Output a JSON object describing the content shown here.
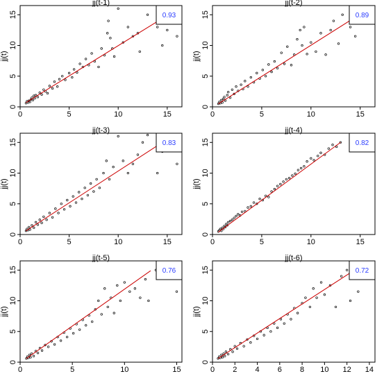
{
  "chart_data": [
    {
      "type": "scatter",
      "title": "jj(t-1)",
      "ylabel": "jj(t)",
      "correlation": "0.93",
      "xlim": [
        0,
        16.5
      ],
      "ylim": [
        0,
        16.5
      ],
      "xticks": [
        0,
        5,
        10,
        15
      ],
      "yticks": [
        0,
        5,
        10,
        15
      ],
      "fit_line": {
        "x": [
          0.6,
          15.0
        ],
        "y": [
          0.7,
          14.9
        ],
        "color": "#cc0000"
      },
      "label_color": "#2a3cff",
      "points": [
        [
          0.6,
          0.6
        ],
        [
          0.7,
          0.9
        ],
        [
          0.8,
          0.7
        ],
        [
          0.9,
          1.0
        ],
        [
          1.0,
          0.8
        ],
        [
          1.1,
          1.2
        ],
        [
          1.2,
          1.5
        ],
        [
          1.3,
          1.1
        ],
        [
          1.4,
          1.8
        ],
        [
          1.5,
          1.4
        ],
        [
          1.6,
          1.9
        ],
        [
          1.8,
          1.6
        ],
        [
          2.0,
          2.3
        ],
        [
          2.2,
          2.0
        ],
        [
          2.4,
          2.8
        ],
        [
          2.6,
          2.5
        ],
        [
          2.8,
          2.2
        ],
        [
          3.0,
          3.4
        ],
        [
          3.3,
          3.0
        ],
        [
          3.5,
          4.1
        ],
        [
          3.8,
          3.3
        ],
        [
          4.0,
          4.5
        ],
        [
          4.3,
          5.0
        ],
        [
          4.6,
          4.4
        ],
        [
          5.0,
          5.5
        ],
        [
          5.3,
          4.8
        ],
        [
          5.5,
          6.1
        ],
        [
          5.8,
          5.6
        ],
        [
          6.1,
          7.0
        ],
        [
          6.4,
          6.5
        ],
        [
          6.7,
          7.8
        ],
        [
          7.0,
          6.8
        ],
        [
          7.3,
          8.7
        ],
        [
          7.6,
          7.4
        ],
        [
          8.0,
          6.5
        ],
        [
          8.3,
          9.5
        ],
        [
          8.6,
          8.4
        ],
        [
          8.9,
          12.0
        ],
        [
          9.0,
          14.0
        ],
        [
          9.2,
          11.2
        ],
        [
          9.4,
          9.5
        ],
        [
          9.6,
          8.2
        ],
        [
          10.0,
          16.0
        ],
        [
          10.5,
          10.5
        ],
        [
          11.0,
          13.0
        ],
        [
          11.5,
          11.5
        ],
        [
          12.0,
          12.0
        ],
        [
          12.2,
          9.0
        ],
        [
          13.0,
          15.0
        ],
        [
          14.0,
          13.0
        ],
        [
          14.5,
          10.0
        ],
        [
          15.0,
          12.5
        ],
        [
          16.0,
          11.5
        ]
      ]
    },
    {
      "type": "scatter",
      "title": "jj(t-2)",
      "ylabel": "jj(t)",
      "correlation": "0.89",
      "xlim": [
        0,
        16.5
      ],
      "ylim": [
        0,
        16.5
      ],
      "xticks": [
        0,
        5,
        10,
        15
      ],
      "yticks": [
        0,
        5,
        10,
        15
      ],
      "fit_line": {
        "x": [
          0.6,
          14.5
        ],
        "y": [
          0.5,
          14.6
        ],
        "color": "#cc0000"
      },
      "label_color": "#2a3cff",
      "points": [
        [
          0.6,
          0.5
        ],
        [
          0.7,
          0.8
        ],
        [
          0.8,
          0.6
        ],
        [
          0.9,
          1.1
        ],
        [
          1.0,
          0.7
        ],
        [
          1.1,
          1.3
        ],
        [
          1.2,
          1.6
        ],
        [
          1.3,
          1.0
        ],
        [
          1.5,
          1.9
        ],
        [
          1.6,
          2.4
        ],
        [
          1.8,
          1.5
        ],
        [
          2.0,
          2.8
        ],
        [
          2.2,
          2.1
        ],
        [
          2.4,
          3.3
        ],
        [
          2.6,
          2.6
        ],
        [
          2.9,
          3.6
        ],
        [
          3.1,
          2.9
        ],
        [
          3.3,
          4.2
        ],
        [
          3.6,
          3.3
        ],
        [
          3.9,
          4.8
        ],
        [
          4.2,
          4.0
        ],
        [
          4.5,
          5.5
        ],
        [
          4.8,
          4.6
        ],
        [
          5.1,
          6.0
        ],
        [
          5.4,
          5.0
        ],
        [
          5.7,
          6.9
        ],
        [
          6.0,
          5.7
        ],
        [
          6.3,
          7.4
        ],
        [
          6.6,
          6.3
        ],
        [
          7.0,
          8.8
        ],
        [
          7.3,
          7.0
        ],
        [
          7.6,
          9.8
        ],
        [
          8.0,
          6.8
        ],
        [
          8.3,
          8.5
        ],
        [
          8.6,
          11.0
        ],
        [
          8.9,
          12.5
        ],
        [
          9.1,
          10.0
        ],
        [
          9.3,
          13.0
        ],
        [
          9.6,
          8.6
        ],
        [
          10.0,
          10.5
        ],
        [
          10.5,
          9.0
        ],
        [
          11.0,
          12.0
        ],
        [
          11.5,
          8.5
        ],
        [
          12.0,
          12.5
        ],
        [
          12.3,
          14.0
        ],
        [
          12.8,
          10.3
        ],
        [
          13.2,
          15.0
        ],
        [
          14.0,
          13.0
        ],
        [
          14.5,
          11.5
        ]
      ]
    },
    {
      "type": "scatter",
      "title": "jj(t-3)",
      "ylabel": "jj(t)",
      "correlation": "0.83",
      "xlim": [
        0,
        16.5
      ],
      "ylim": [
        0,
        16.5
      ],
      "xticks": [
        0,
        5,
        10,
        15
      ],
      "yticks": [
        0,
        5,
        10,
        15
      ],
      "fit_line": {
        "x": [
          0.6,
          14.5
        ],
        "y": [
          0.6,
          15.0
        ],
        "color": "#cc0000"
      },
      "label_color": "#2a3cff",
      "points": [
        [
          0.6,
          0.6
        ],
        [
          0.7,
          0.9
        ],
        [
          0.8,
          0.7
        ],
        [
          0.9,
          1.2
        ],
        [
          1.0,
          0.8
        ],
        [
          1.2,
          1.5
        ],
        [
          1.4,
          1.1
        ],
        [
          1.6,
          2.0
        ],
        [
          1.8,
          1.6
        ],
        [
          2.0,
          2.4
        ],
        [
          2.2,
          1.9
        ],
        [
          2.4,
          2.9
        ],
        [
          2.7,
          2.4
        ],
        [
          3.0,
          3.5
        ],
        [
          3.3,
          2.8
        ],
        [
          3.6,
          4.2
        ],
        [
          3.9,
          3.5
        ],
        [
          4.2,
          5.0
        ],
        [
          4.5,
          4.1
        ],
        [
          4.8,
          5.6
        ],
        [
          5.1,
          4.6
        ],
        [
          5.4,
          6.2
        ],
        [
          5.7,
          5.2
        ],
        [
          6.0,
          6.9
        ],
        [
          6.3,
          5.8
        ],
        [
          6.6,
          7.6
        ],
        [
          6.9,
          6.4
        ],
        [
          7.2,
          8.3
        ],
        [
          7.5,
          7.0
        ],
        [
          7.8,
          9.0
        ],
        [
          8.1,
          7.6
        ],
        [
          8.5,
          10.0
        ],
        [
          8.8,
          12.0
        ],
        [
          9.1,
          9.0
        ],
        [
          9.5,
          11.0
        ],
        [
          10.0,
          16.0
        ],
        [
          10.5,
          12.0
        ],
        [
          11.0,
          10.0
        ],
        [
          11.5,
          11.5
        ],
        [
          12.0,
          13.0
        ],
        [
          12.5,
          15.0
        ],
        [
          13.0,
          16.2
        ],
        [
          14.0,
          10.0
        ],
        [
          14.5,
          13.5
        ],
        [
          16.0,
          11.5
        ]
      ]
    },
    {
      "type": "scatter",
      "title": "jj(t-4)",
      "ylabel": "jj(t)",
      "correlation": "0.82",
      "xlim": [
        0,
        16.5
      ],
      "ylim": [
        0,
        16.5
      ],
      "xticks": [
        0,
        5,
        10,
        15
      ],
      "yticks": [
        0,
        5,
        10,
        15
      ],
      "fit_line": {
        "x": [
          0.6,
          13.0
        ],
        "y": [
          0.4,
          15.0
        ],
        "color": "#cc0000"
      },
      "label_color": "#2a3cff",
      "points": [
        [
          0.6,
          0.5
        ],
        [
          0.7,
          0.7
        ],
        [
          0.8,
          0.9
        ],
        [
          0.9,
          0.6
        ],
        [
          1.0,
          1.1
        ],
        [
          1.1,
          0.9
        ],
        [
          1.2,
          1.4
        ],
        [
          1.3,
          1.2
        ],
        [
          1.4,
          1.7
        ],
        [
          1.5,
          1.5
        ],
        [
          1.6,
          2.0
        ],
        [
          1.8,
          2.2
        ],
        [
          2.0,
          2.4
        ],
        [
          2.2,
          2.7
        ],
        [
          2.4,
          3.0
        ],
        [
          2.6,
          3.3
        ],
        [
          2.8,
          3.1
        ],
        [
          3.0,
          3.7
        ],
        [
          3.3,
          3.8
        ],
        [
          3.6,
          4.4
        ],
        [
          3.9,
          4.6
        ],
        [
          4.2,
          5.2
        ],
        [
          4.5,
          5.0
        ],
        [
          4.8,
          5.8
        ],
        [
          5.1,
          5.6
        ],
        [
          5.4,
          6.3
        ],
        [
          5.7,
          6.1
        ],
        [
          6.0,
          7.0
        ],
        [
          6.3,
          7.4
        ],
        [
          6.6,
          7.9
        ],
        [
          6.9,
          8.2
        ],
        [
          7.2,
          8.6
        ],
        [
          7.5,
          9.0
        ],
        [
          7.8,
          9.2
        ],
        [
          8.1,
          9.6
        ],
        [
          8.4,
          9.9
        ],
        [
          8.7,
          10.5
        ],
        [
          9.0,
          10.8
        ],
        [
          9.3,
          11.1
        ],
        [
          9.6,
          11.9
        ],
        [
          10.0,
          12.4
        ],
        [
          10.3,
          12.1
        ],
        [
          10.7,
          12.8
        ],
        [
          11.0,
          13.3
        ],
        [
          11.4,
          13.0
        ],
        [
          11.8,
          14.0
        ],
        [
          12.2,
          14.6
        ],
        [
          12.6,
          14.3
        ],
        [
          13.0,
          15.0
        ]
      ]
    },
    {
      "type": "scatter",
      "title": "jj(t-5)",
      "ylabel": "jj(t)",
      "correlation": "0.76",
      "xlim": [
        0,
        15.5
      ],
      "ylim": [
        0,
        16.5
      ],
      "xticks": [
        0,
        5,
        10,
        15
      ],
      "yticks": [
        0,
        5,
        10,
        15
      ],
      "fit_line": {
        "x": [
          0.6,
          12.5
        ],
        "y": [
          0.6,
          14.9
        ],
        "color": "#cc0000"
      },
      "label_color": "#2a3cff",
      "points": [
        [
          0.6,
          0.6
        ],
        [
          0.7,
          0.9
        ],
        [
          0.8,
          0.7
        ],
        [
          0.9,
          1.2
        ],
        [
          1.0,
          0.8
        ],
        [
          1.1,
          1.4
        ],
        [
          1.3,
          1.0
        ],
        [
          1.5,
          1.8
        ],
        [
          1.7,
          1.5
        ],
        [
          1.9,
          2.3
        ],
        [
          2.1,
          1.9
        ],
        [
          2.4,
          2.8
        ],
        [
          2.7,
          2.5
        ],
        [
          3.0,
          3.4
        ],
        [
          3.3,
          2.9
        ],
        [
          3.6,
          4.1
        ],
        [
          3.9,
          3.5
        ],
        [
          4.2,
          4.8
        ],
        [
          4.5,
          4.1
        ],
        [
          4.8,
          5.5
        ],
        [
          5.1,
          4.7
        ],
        [
          5.4,
          6.2
        ],
        [
          5.7,
          5.3
        ],
        [
          6.0,
          6.9
        ],
        [
          6.3,
          6.0
        ],
        [
          6.6,
          7.6
        ],
        [
          6.9,
          6.6
        ],
        [
          7.2,
          8.6
        ],
        [
          7.5,
          10.0
        ],
        [
          7.8,
          7.8
        ],
        [
          8.1,
          12.0
        ],
        [
          8.4,
          9.0
        ],
        [
          8.7,
          10.5
        ],
        [
          9.0,
          8.0
        ],
        [
          9.3,
          12.5
        ],
        [
          9.6,
          10.0
        ],
        [
          10.0,
          13.0
        ],
        [
          10.5,
          11.5
        ],
        [
          11.0,
          12.0
        ],
        [
          11.5,
          10.5
        ],
        [
          12.0,
          13.5
        ],
        [
          12.3,
          10.0
        ],
        [
          13.0,
          15.0
        ],
        [
          15.0,
          11.5
        ]
      ]
    },
    {
      "type": "scatter",
      "title": "jj(t-6)",
      "ylabel": "jj(t)",
      "correlation": "0.72",
      "xlim": [
        0,
        14.5
      ],
      "ylim": [
        0,
        16.5
      ],
      "xticks": [
        0,
        2,
        4,
        6,
        8,
        10,
        12,
        14
      ],
      "yticks": [
        0,
        5,
        10,
        15
      ],
      "fit_line": {
        "x": [
          0.5,
          12.5
        ],
        "y": [
          0.6,
          14.8
        ],
        "color": "#cc0000"
      },
      "label_color": "#2a3cff",
      "points": [
        [
          0.5,
          0.6
        ],
        [
          0.6,
          0.9
        ],
        [
          0.7,
          0.7
        ],
        [
          0.8,
          1.2
        ],
        [
          0.9,
          0.8
        ],
        [
          1.0,
          1.4
        ],
        [
          1.1,
          1.0
        ],
        [
          1.2,
          1.7
        ],
        [
          1.4,
          1.3
        ],
        [
          1.6,
          2.1
        ],
        [
          1.8,
          1.7
        ],
        [
          2.0,
          2.6
        ],
        [
          2.2,
          2.2
        ],
        [
          2.5,
          3.1
        ],
        [
          2.8,
          2.6
        ],
        [
          3.1,
          3.7
        ],
        [
          3.4,
          3.2
        ],
        [
          3.7,
          4.3
        ],
        [
          4.0,
          3.8
        ],
        [
          4.3,
          5.0
        ],
        [
          4.6,
          4.4
        ],
        [
          4.9,
          5.6
        ],
        [
          5.2,
          5.0
        ],
        [
          5.5,
          6.3
        ],
        [
          5.8,
          5.6
        ],
        [
          6.1,
          7.0
        ],
        [
          6.4,
          6.3
        ],
        [
          6.7,
          7.8
        ],
        [
          7.0,
          7.0
        ],
        [
          7.3,
          8.8
        ],
        [
          7.6,
          8.0
        ],
        [
          8.0,
          9.6
        ],
        [
          8.3,
          10.5
        ],
        [
          8.7,
          9.0
        ],
        [
          9.0,
          12.0
        ],
        [
          9.3,
          10.5
        ],
        [
          9.7,
          13.0
        ],
        [
          10.0,
          11.0
        ],
        [
          10.5,
          12.5
        ],
        [
          11.0,
          9.0
        ],
        [
          11.5,
          14.0
        ],
        [
          12.0,
          15.0
        ],
        [
          12.3,
          10.0
        ],
        [
          12.6,
          16.0
        ],
        [
          13.0,
          11.5
        ]
      ]
    }
  ]
}
